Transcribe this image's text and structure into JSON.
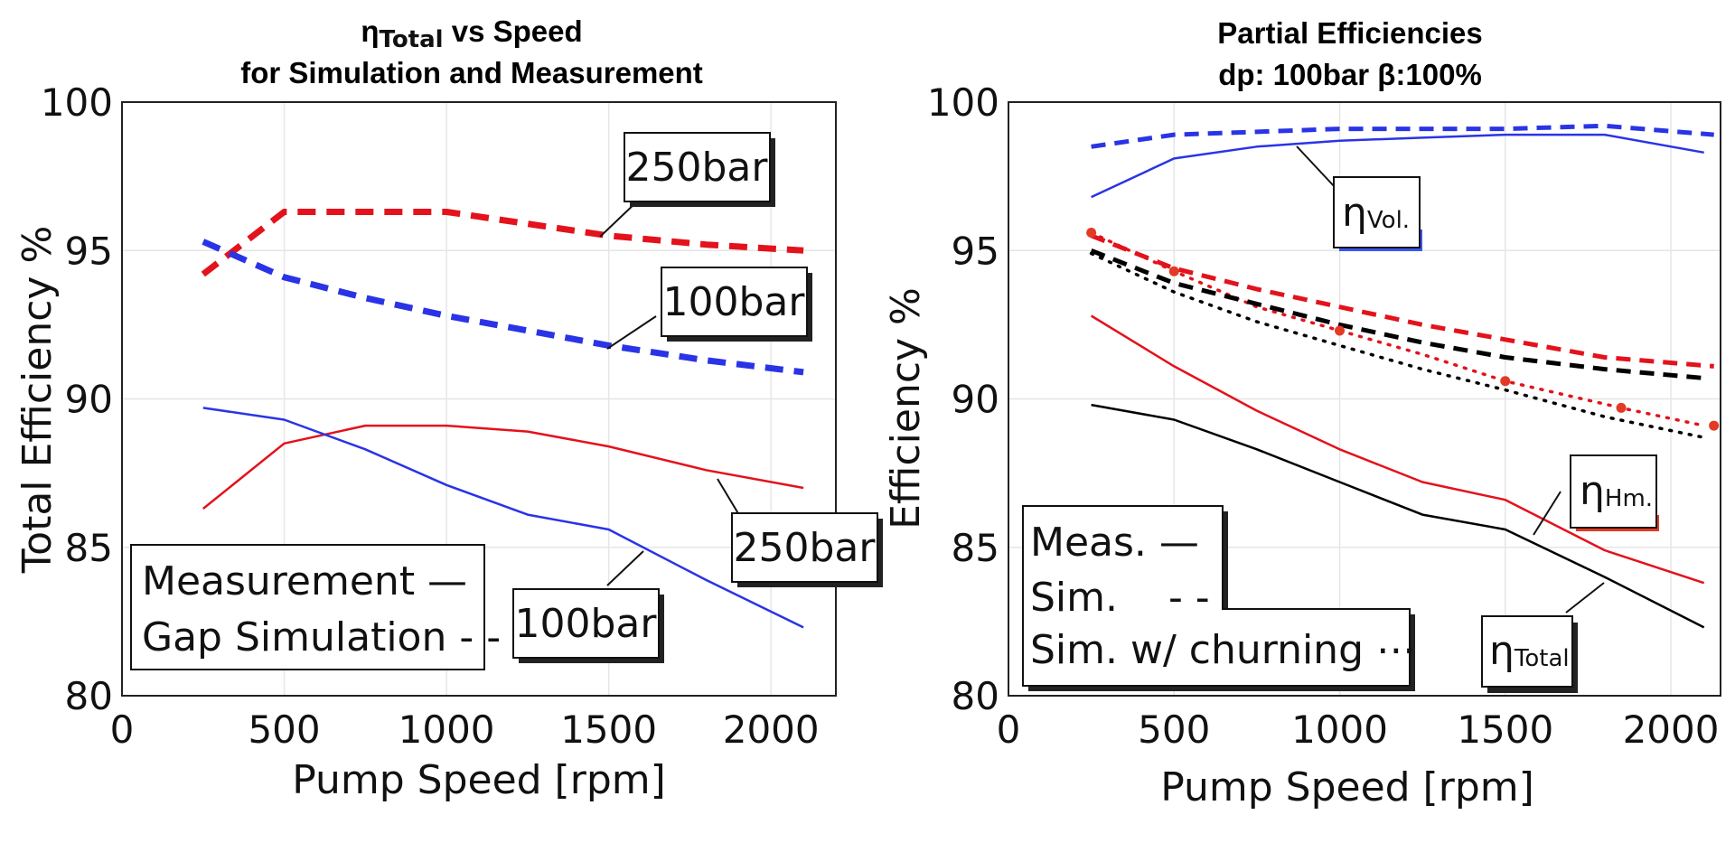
{
  "colors": {
    "red": "#e3121c",
    "blue": "#2a34e6",
    "black": "#000000",
    "red_dark": "#e33a24"
  },
  "chart_data": [
    {
      "id": "left",
      "type": "line",
      "title_eta": "η",
      "title_sub": "Total",
      "title_rest": " vs Speed",
      "title_line2": "for Simulation and Measurement",
      "xlabel": "Pump Speed [rpm]",
      "ylabel": "Total Efficiency  %",
      "xlim": [
        0,
        2200
      ],
      "ylim": [
        80,
        100
      ],
      "xticks": [
        0,
        500,
        1000,
        1500,
        2000
      ],
      "yticks": [
        80,
        85,
        90,
        95,
        100
      ],
      "series": [
        {
          "name": "Gap Simulation 250bar",
          "style": "dash-thick",
          "color": "red",
          "x": [
            250,
            500,
            750,
            1000,
            1250,
            1500,
            1800,
            2100
          ],
          "y": [
            94.2,
            96.3,
            96.3,
            96.3,
            95.9,
            95.5,
            95.2,
            95.0
          ]
        },
        {
          "name": "Gap Simulation 100bar",
          "style": "dash-thick",
          "color": "blue",
          "x": [
            250,
            500,
            750,
            1000,
            1250,
            1500,
            1800,
            2100
          ],
          "y": [
            95.3,
            94.1,
            93.4,
            92.8,
            92.3,
            91.8,
            91.3,
            90.9
          ]
        },
        {
          "name": "Measurement 250bar",
          "style": "solid",
          "color": "red",
          "x": [
            250,
            500,
            750,
            1000,
            1250,
            1500,
            1800,
            2100
          ],
          "y": [
            86.3,
            88.5,
            89.1,
            89.1,
            88.9,
            88.4,
            87.6,
            87.0
          ]
        },
        {
          "name": "Measurement 100bar",
          "style": "solid",
          "color": "blue",
          "x": [
            250,
            500,
            750,
            1000,
            1250,
            1500,
            1800,
            2100
          ],
          "y": [
            89.7,
            89.3,
            88.3,
            87.1,
            86.1,
            85.6,
            83.9,
            82.3
          ]
        }
      ],
      "annotations": [
        "250bar",
        "100bar",
        "250bar",
        "100bar"
      ],
      "legend": [
        "Measurement —",
        "Gap Simulation - -"
      ]
    },
    {
      "id": "right",
      "type": "line",
      "title_line1": "Partial Efficiencies",
      "title_line2": "dp: 100bar β:100%",
      "xlabel": "Pump Speed [rpm]",
      "ylabel": "Efficiency  %",
      "xlim": [
        0,
        2150
      ],
      "ylim": [
        80,
        100
      ],
      "xticks": [
        0,
        500,
        1000,
        1500,
        2000
      ],
      "yticks": [
        80,
        85,
        90,
        95,
        100
      ],
      "series": [
        {
          "name": "ηVol. Sim.",
          "style": "dash",
          "color": "blue",
          "x": [
            250,
            500,
            750,
            1000,
            1250,
            1500,
            1800,
            2130
          ],
          "y": [
            98.5,
            98.9,
            99.0,
            99.1,
            99.1,
            99.1,
            99.2,
            98.9
          ]
        },
        {
          "name": "ηVol. Meas.",
          "style": "solid",
          "color": "blue",
          "x": [
            250,
            500,
            750,
            1000,
            1250,
            1500,
            1800,
            2100
          ],
          "y": [
            96.8,
            98.1,
            98.5,
            98.7,
            98.8,
            98.9,
            98.9,
            98.3
          ]
        },
        {
          "name": "ηHm. Sim.",
          "style": "dash",
          "color": "red",
          "x": [
            250,
            500,
            750,
            1000,
            1250,
            1500,
            1800,
            2130
          ],
          "y": [
            95.5,
            94.4,
            93.7,
            93.1,
            92.5,
            92.0,
            91.4,
            91.1
          ]
        },
        {
          "name": "ηHm. Sim. w/ churning",
          "style": "dot",
          "color": "red",
          "x": [
            250,
            500,
            750,
            1000,
            1250,
            1500,
            1850,
            2100
          ],
          "y": [
            95.6,
            94.3,
            93.1,
            92.3,
            91.5,
            90.6,
            89.7,
            89.1
          ]
        },
        {
          "name": "ηTotal Sim.",
          "style": "dash",
          "color": "black",
          "x": [
            250,
            500,
            750,
            1000,
            1250,
            1500,
            1800,
            2100
          ],
          "y": [
            95.0,
            93.9,
            93.2,
            92.5,
            91.9,
            91.4,
            91.0,
            90.7
          ]
        },
        {
          "name": "ηTotal Sim. w/ churning",
          "style": "dot",
          "color": "black",
          "x": [
            250,
            500,
            750,
            1000,
            1250,
            1500,
            1800,
            2100
          ],
          "y": [
            94.9,
            93.6,
            92.6,
            91.8,
            91.0,
            90.3,
            89.4,
            88.7
          ]
        },
        {
          "name": "ηHm. Meas.",
          "style": "solid",
          "color": "red",
          "x": [
            250,
            500,
            750,
            1000,
            1250,
            1500,
            1800,
            2100
          ],
          "y": [
            92.8,
            91.1,
            89.6,
            88.3,
            87.2,
            86.6,
            84.9,
            83.8
          ]
        },
        {
          "name": "ηTotal Meas.",
          "style": "solid",
          "color": "black",
          "x": [
            250,
            500,
            750,
            1000,
            1250,
            1500,
            1800,
            2100
          ],
          "y": [
            89.8,
            89.3,
            88.3,
            87.2,
            86.1,
            85.6,
            84.0,
            82.3
          ]
        }
      ],
      "markers": {
        "x": [
          250,
          500,
          1000,
          1500,
          1850,
          2130
        ],
        "y": [
          95.6,
          94.3,
          92.3,
          90.6,
          89.7,
          89.1
        ]
      },
      "labels": {
        "vol": "Vol.",
        "hm": "Hm.",
        "total": "Total",
        "eta": "η"
      },
      "legend": [
        "Meas. —",
        "Sim.    - -",
        "Sim. w/ churning ⋯"
      ]
    }
  ]
}
